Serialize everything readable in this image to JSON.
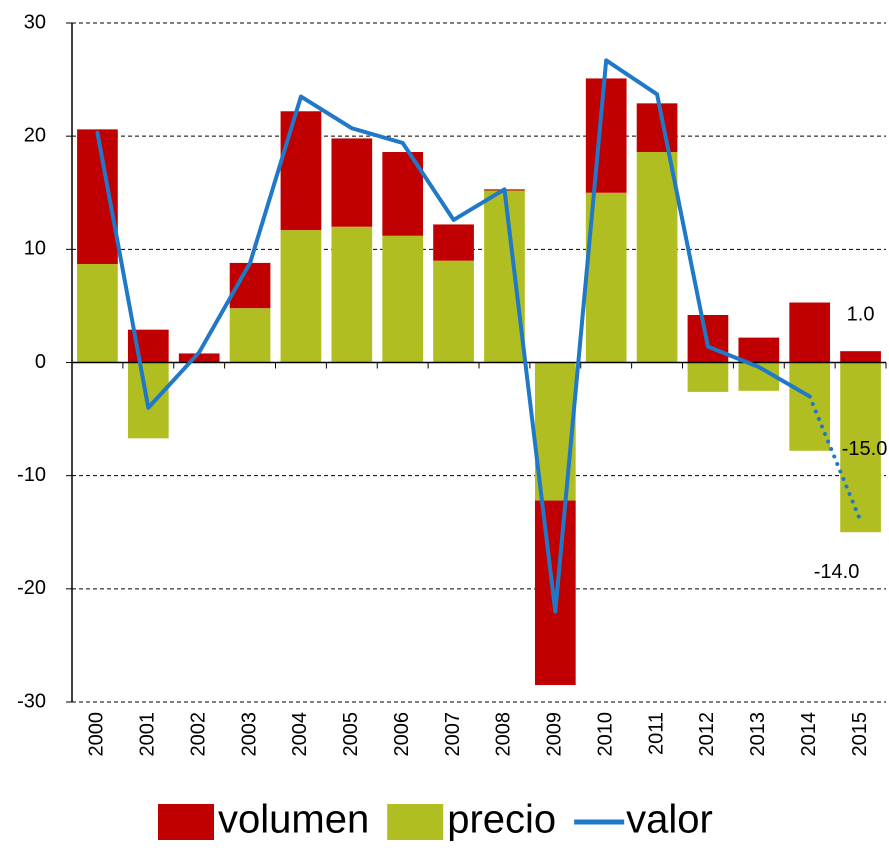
{
  "chart_data": {
    "type": "bar",
    "categories": [
      "2000",
      "2001",
      "2002",
      "2003",
      "2004",
      "2005",
      "2006",
      "2007",
      "2008",
      "2009",
      "2010",
      "2011",
      "2012",
      "2013",
      "2014",
      "2015"
    ],
    "series": [
      {
        "name": "volumen",
        "type": "bar",
        "color": "#c00000",
        "values": [
          11.9,
          2.9,
          0.8,
          4.0,
          10.5,
          7.8,
          7.4,
          3.2,
          0.1,
          -16.3,
          10.1,
          4.3,
          4.2,
          2.2,
          5.3,
          1.0
        ],
        "value_labels": [
          null,
          null,
          null,
          null,
          null,
          null,
          null,
          null,
          null,
          null,
          null,
          null,
          null,
          null,
          null,
          "1.0"
        ]
      },
      {
        "name": "precio",
        "type": "bar",
        "color": "#b0be22",
        "values": [
          8.7,
          -6.7,
          0,
          4.8,
          11.7,
          12.0,
          11.2,
          9.0,
          15.2,
          -12.2,
          15.0,
          18.6,
          -2.6,
          -2.5,
          -7.8,
          -15.0
        ],
        "value_labels": [
          null,
          null,
          null,
          null,
          null,
          null,
          null,
          null,
          null,
          null,
          null,
          null,
          null,
          null,
          null,
          "-15.0"
        ]
      },
      {
        "name": "valor",
        "type": "line",
        "color": "#1f78c8",
        "dotted_last": true,
        "values": [
          20.3,
          -4.0,
          0.9,
          8.8,
          23.5,
          20.7,
          19.4,
          12.6,
          15.3,
          -22.0,
          26.7,
          23.7,
          1.4,
          -0.4,
          -3.0,
          -14.0
        ],
        "value_labels": [
          null,
          null,
          null,
          null,
          null,
          null,
          null,
          null,
          null,
          null,
          null,
          null,
          null,
          null,
          null,
          "-14.0"
        ]
      }
    ],
    "ylim": [
      -30,
      30
    ],
    "yticks": [
      -30,
      -20,
      -10,
      0,
      10,
      20,
      30
    ],
    "grid": true,
    "legend": "bottom"
  }
}
